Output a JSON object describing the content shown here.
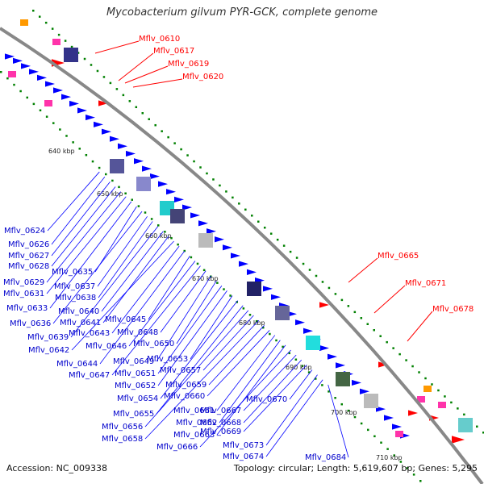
{
  "title": "Mycobacterium gilvum PYR-GCK, complete genome",
  "footer": {
    "accession": "Accession: NC_009338",
    "summary": "Topology: circular; Length: 5,619,607 bp; Genes: 5,295"
  },
  "colors": {
    "forward_gene": "#0000ff",
    "highlight_gene": "#ff0000",
    "backbone": "#888888",
    "gc_marker": "#008000"
  },
  "ticks": [
    "640 kbp",
    "650 kbp",
    "660 kbp",
    "670 kbp",
    "680 kbp",
    "690 kbp",
    "700 kbp",
    "710 kbp"
  ],
  "red_labels": [
    "Mflv_0610",
    "Mflv_0617",
    "Mflv_0619",
    "Mflv_0620",
    "Mflv_0665",
    "Mflv_0671",
    "Mflv_0678"
  ],
  "blue_labels": [
    "Mflv_0624",
    "Mflv_0626",
    "Mflv_0627",
    "Mflv_0628",
    "Mflv_0629",
    "Mflv_0631",
    "Mflv_0633",
    "Mflv_0635",
    "Mflv_0636",
    "Mflv_0637",
    "Mflv_0638",
    "Mflv_0639",
    "Mflv_0640",
    "Mflv_0641",
    "Mflv_0642",
    "Mflv_0643",
    "Mflv_0644",
    "Mflv_0645",
    "Mflv_0646",
    "Mflv_0647",
    "Mflv_0648",
    "Mflv_0649",
    "Mflv_0650",
    "Mflv_0651",
    "Mflv_0652",
    "Mflv_0653",
    "Mflv_0654",
    "Mflv_0655",
    "Mflv_0656",
    "Mflv_0657",
    "Mflv_0658",
    "Mflv_0659",
    "Mflv_0660",
    "Mflv_0661",
    "Mflv_0662",
    "Mflv_0663",
    "Mflv_0666",
    "Mflv_0667",
    "Mflv_0668",
    "Mflv_0669",
    "Mflv_0670",
    "Mflv_0673",
    "Mflv_0674",
    "Mflv_0684"
  ]
}
